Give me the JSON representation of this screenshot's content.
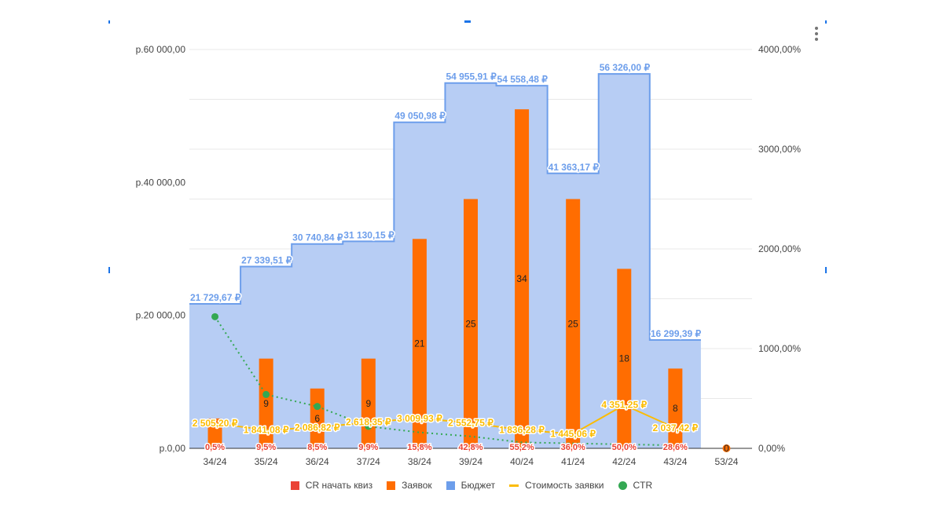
{
  "chart_data": {
    "type": "combo",
    "categories": [
      "34/24",
      "35/24",
      "36/24",
      "37/24",
      "38/24",
      "39/24",
      "40/24",
      "41/24",
      "42/24",
      "43/24",
      "53/24"
    ],
    "left_axis": {
      "ticks": [
        "р.0,00",
        "р.20 000,00",
        "р.40 000,00",
        "р.60 000,00"
      ],
      "min": 0,
      "max": 60000
    },
    "right_axis": {
      "ticks": [
        "0,00%",
        "1000,00%",
        "2000,00%",
        "3000,00%",
        "4000,00%"
      ],
      "min": 0,
      "max": 4000
    },
    "series": [
      {
        "name": "CR начать квиз",
        "type": "label-points",
        "values": [
          0.5,
          9.5,
          8.5,
          9.9,
          15.8,
          42.8,
          55.2,
          36.0,
          50.0,
          28.6,
          null
        ],
        "labels": [
          "0,5%",
          "9,5%",
          "8,5%",
          "9,9%",
          "15,8%",
          "42,8%",
          "55,2%",
          "36,0%",
          "50,0%",
          "28,6%",
          ""
        ]
      },
      {
        "name": "Заявок",
        "type": "bar",
        "values": [
          3,
          9,
          6,
          9,
          21,
          25,
          34,
          25,
          18,
          8,
          0
        ],
        "labels": [
          "",
          "9",
          "6",
          "9",
          "21",
          "25",
          "34",
          "25",
          "18",
          "8",
          "0"
        ]
      },
      {
        "name": "Бюджет",
        "type": "stepped-area",
        "values": [
          21729.67,
          27339.51,
          30740.84,
          31130.15,
          49050.98,
          54955.91,
          54558.48,
          41363.17,
          56326.0,
          16299.39,
          null
        ],
        "labels": [
          "21 729,67 ₽",
          "27 339,51 ₽",
          "30 740,84 ₽",
          "31 130,15 ₽",
          "49 050,98 ₽",
          "54 955,91 ₽",
          "54 558,48 ₽",
          "41 363,17 ₽",
          "56 326,00 ₽",
          "16 299,39 ₽",
          ""
        ]
      },
      {
        "name": "Стоимость заявки",
        "type": "line",
        "values": [
          2505.2,
          1841.08,
          2086.82,
          2618.35,
          3009.93,
          2552.75,
          1836.28,
          1445.06,
          4351.25,
          2037.42,
          null
        ],
        "labels": [
          "2 505,20 ₽",
          "1 841,08 ₽",
          "2 086,82 ₽",
          "2 618,35 ₽",
          "3 009,93 ₽",
          "2 552,75 ₽",
          "1 836,28 ₽",
          "1 445,06 ₽",
          "4 351,25 ₽",
          "2 037,42 ₽",
          ""
        ]
      },
      {
        "name": "CTR",
        "type": "dotted-line",
        "values": [
          1320,
          540,
          420,
          220,
          160,
          120,
          60,
          50,
          40,
          30,
          null
        ]
      }
    ],
    "colors": {
      "cr": "#ea4335",
      "leads": "#ff6d01",
      "budget": "#6d9eeb",
      "budget_fill": "#b7cdf4",
      "cost": "#fbbc04",
      "ctr": "#34a853",
      "axis": "#444444",
      "grid": "#e8e8e8"
    },
    "legend_position": "bottom"
  },
  "ui": {
    "menu_icon": "more-vert-icon"
  }
}
